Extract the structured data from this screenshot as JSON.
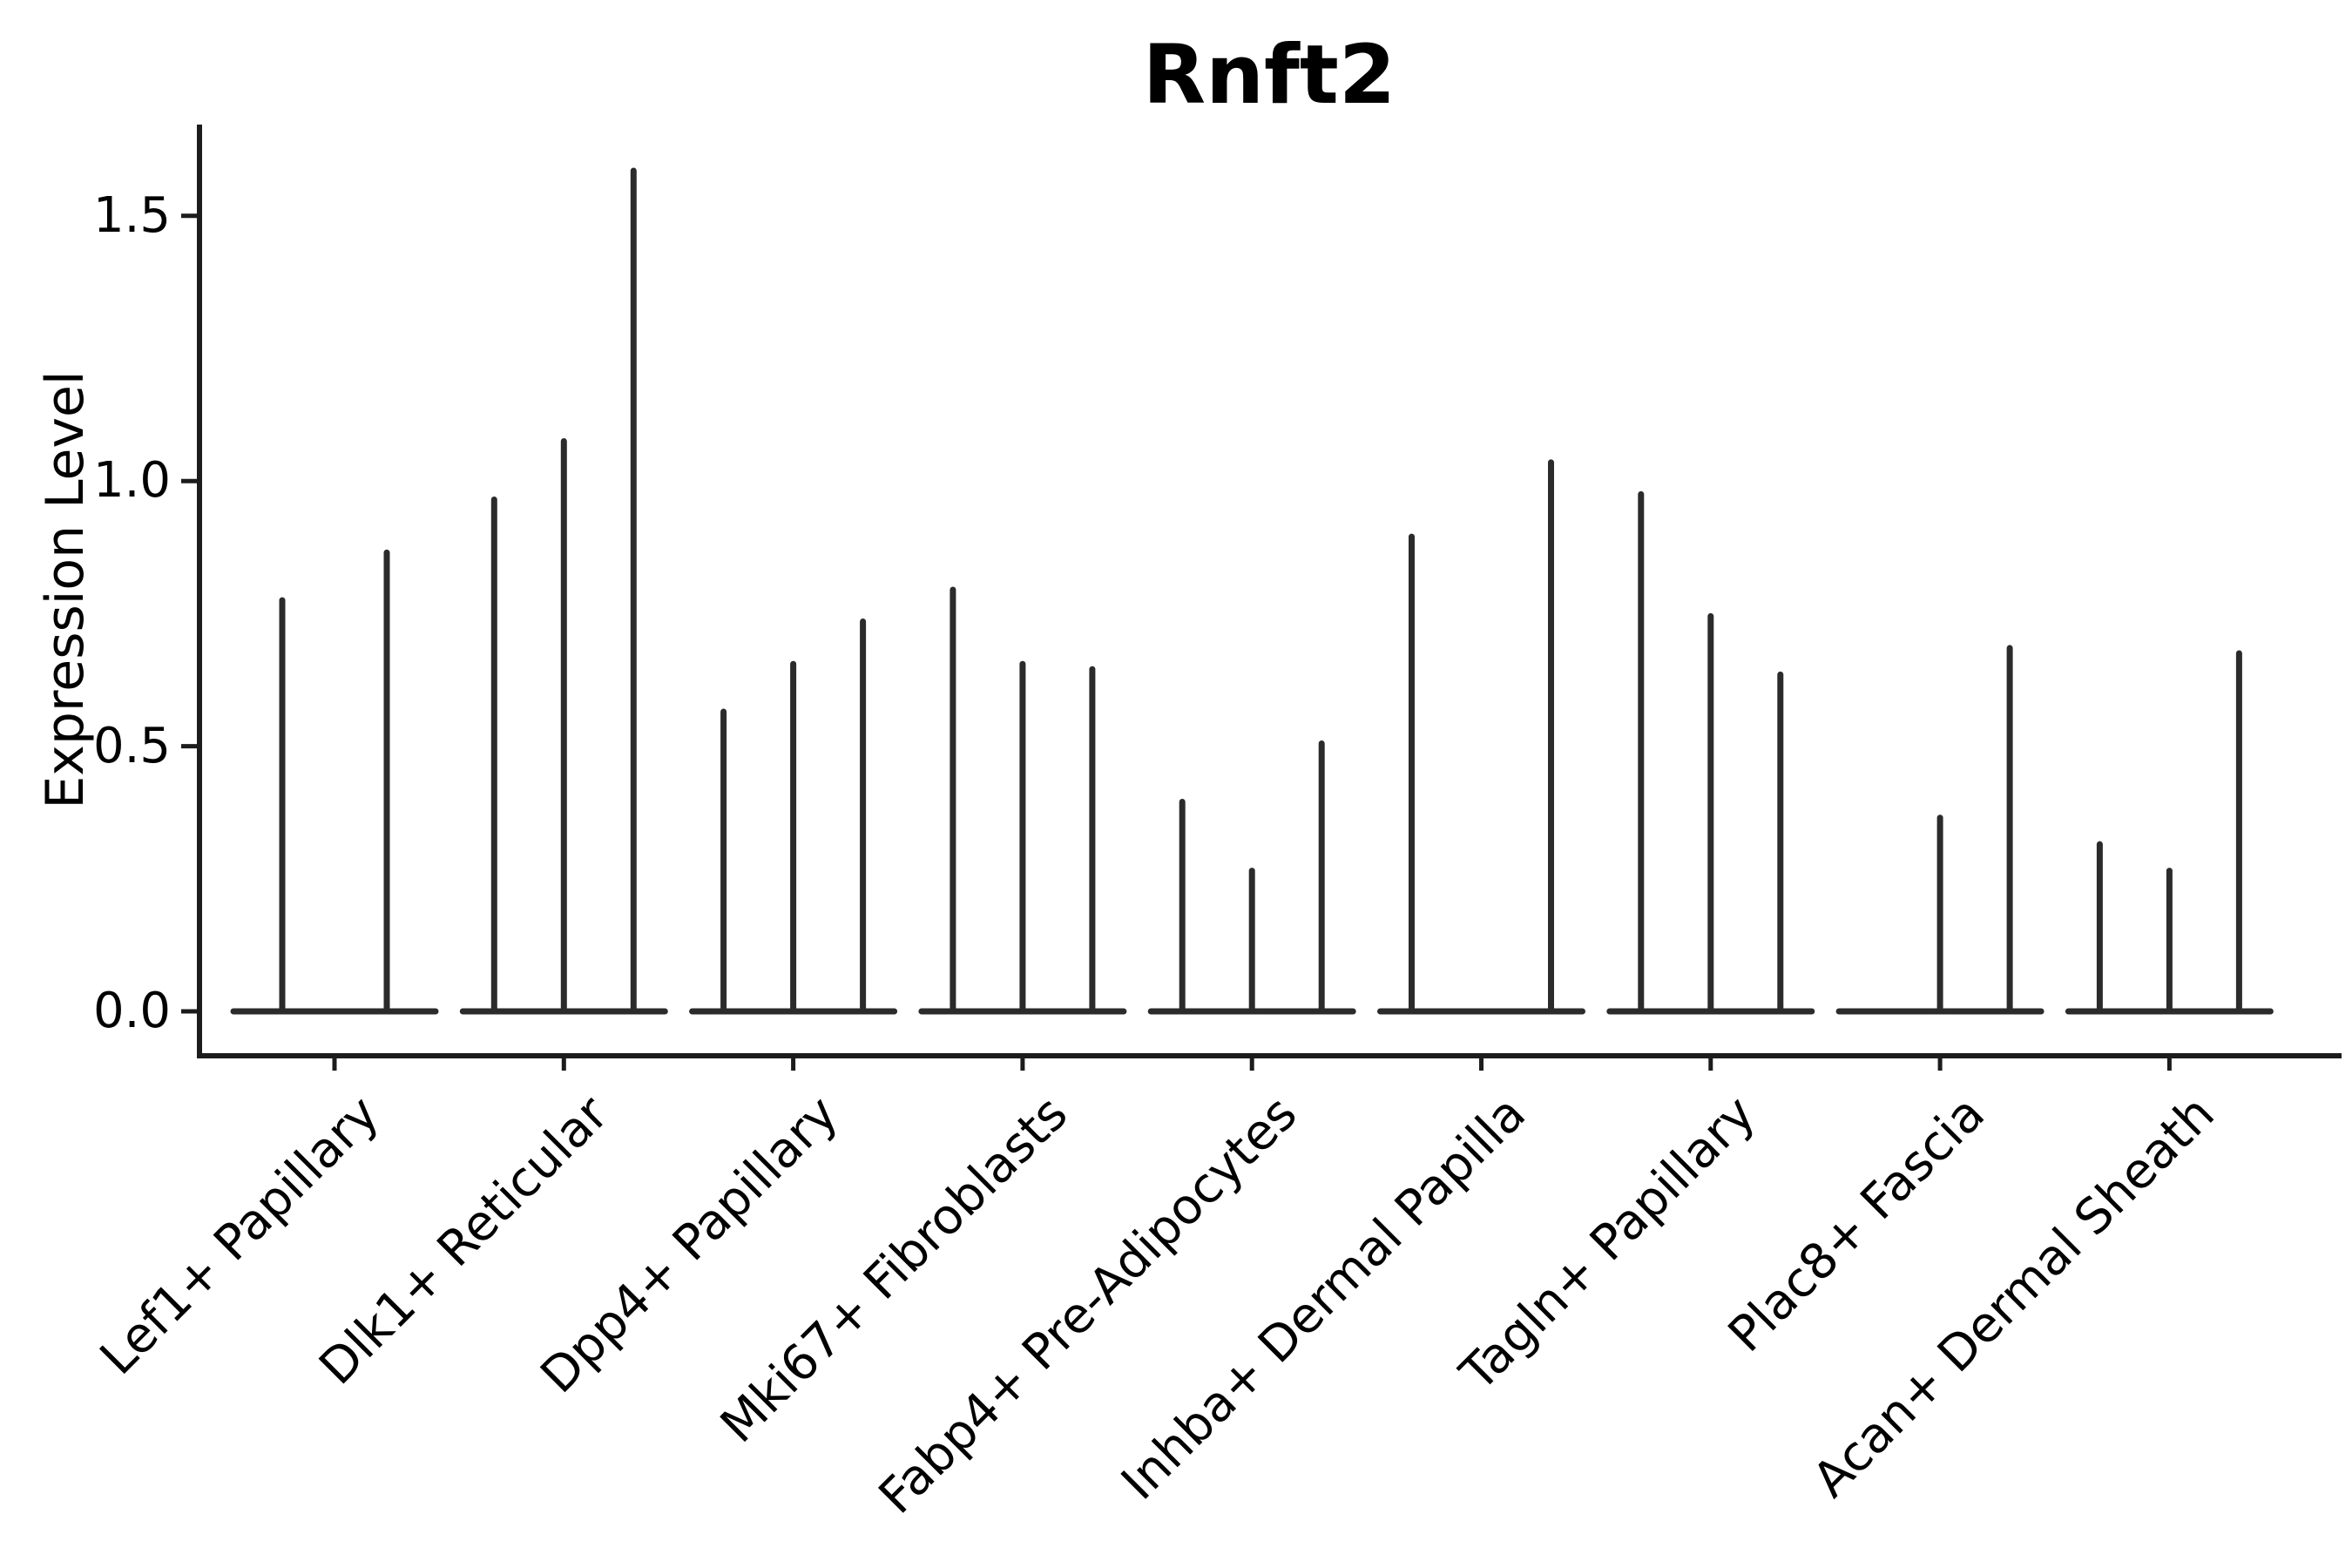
{
  "colors": {
    "background": "#ffffff",
    "violin_stroke": "#2b2b2b",
    "axis": "#1c1c1c",
    "text": "#000000"
  },
  "chart_data": {
    "type": "violin",
    "title": "Rnft2",
    "xlabel": "",
    "ylabel": "Expression Level",
    "grid": false,
    "legend": "none",
    "ylim": [
      -0.085,
      1.67
    ],
    "yticks": [
      {
        "value": 0.0,
        "label": "0.0"
      },
      {
        "value": 0.5,
        "label": "0.5"
      },
      {
        "value": 1.0,
        "label": "1.0"
      },
      {
        "value": 1.5,
        "label": "1.5"
      }
    ],
    "categories": [
      "Lef1+ Papillary",
      "Dlk1+ Reticular",
      "Dpp4+ Papillary",
      "Mki67+ Fibroblasts",
      "Fabp4+ Pre-Adipocytes",
      "Inhba+ Dermal Papilla",
      "Tagln+ Papillary",
      "Plac8+ Fascia",
      "Acan+ Dermal Sheath"
    ],
    "violin_max_per_category": [
      [
        0.78,
        0.87
      ],
      [
        0.97,
        1.08,
        1.59
      ],
      [
        0.57,
        0.66,
        0.74
      ],
      [
        0.8,
        0.66,
        0.65
      ],
      [
        0.4,
        0.27,
        0.51
      ],
      [
        0.9,
        0.0,
        1.04
      ],
      [
        0.98,
        0.75,
        0.64
      ],
      [
        0.0,
        0.37,
        0.69
      ],
      [
        0.32,
        0.27,
        0.68
      ]
    ],
    "note_shape": "needle-thin violins: flat base at 0 expression with a thin spike up to the max expression; violins with max 0 are flat lines"
  }
}
